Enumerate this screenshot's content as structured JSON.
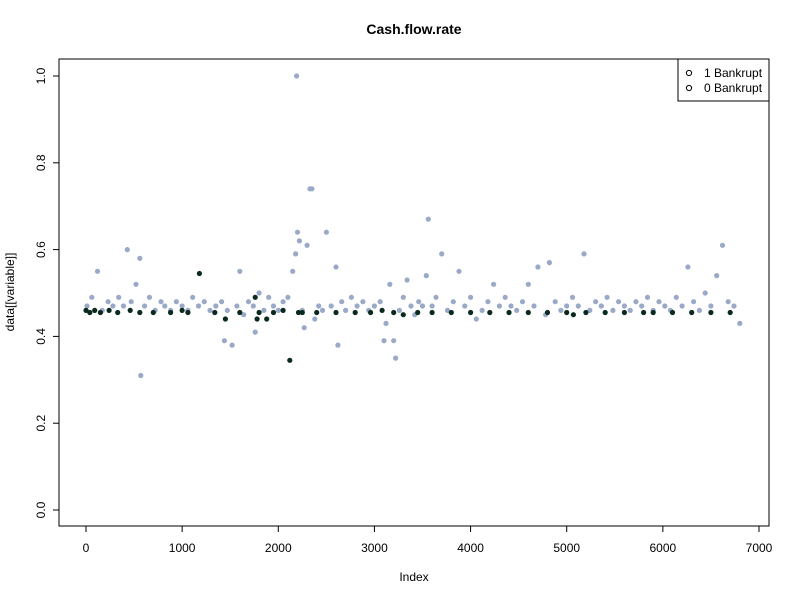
{
  "chart_data": {
    "type": "scatter",
    "title": "Cash.flow.rate",
    "xlabel": "Index",
    "ylabel": "data[[variable]]",
    "xlim": [
      0,
      7000
    ],
    "ylim": [
      0,
      1.0
    ],
    "x_ticks": [
      "0",
      "1000",
      "2000",
      "3000",
      "4000",
      "5000",
      "6000",
      "7000"
    ],
    "y_ticks": [
      "0.0",
      "0.2",
      "0.4",
      "0.6",
      "0.8",
      "1.0"
    ],
    "grid": false,
    "legend": {
      "position": "top-right",
      "items": [
        {
          "label": "1 Bankrupt",
          "symbol": "o"
        },
        {
          "label": "0 Bankrupt",
          "symbol": "o"
        }
      ]
    },
    "colors": {
      "bankrupt_0": "#9aa9c7",
      "bankrupt_1": "#0b2a1f"
    },
    "series": [
      {
        "name": "0 Bankrupt",
        "color": "#9aa9c7",
        "x": [
          10,
          60,
          120,
          170,
          230,
          280,
          340,
          390,
          430,
          470,
          520,
          560,
          570,
          610,
          660,
          720,
          780,
          820,
          880,
          940,
          1000,
          1060,
          1110,
          1170,
          1230,
          1290,
          1350,
          1410,
          1440,
          1470,
          1520,
          1570,
          1600,
          1640,
          1690,
          1740,
          1760,
          1800,
          1850,
          1900,
          1950,
          2000,
          2050,
          2100,
          2150,
          2180,
          2190,
          2200,
          2220,
          2250,
          2270,
          2300,
          2330,
          2350,
          2380,
          2420,
          2460,
          2500,
          2550,
          2600,
          2620,
          2660,
          2700,
          2760,
          2820,
          2880,
          2940,
          3000,
          3060,
          3100,
          3120,
          3160,
          3200,
          3220,
          3260,
          3300,
          3340,
          3380,
          3420,
          3460,
          3500,
          3540,
          3560,
          3600,
          3640,
          3700,
          3760,
          3820,
          3880,
          3940,
          4000,
          4060,
          4120,
          4180,
          4240,
          4300,
          4360,
          4420,
          4480,
          4540,
          4600,
          4660,
          4700,
          4780,
          4820,
          4880,
          4940,
          5000,
          5060,
          5120,
          5180,
          5240,
          5300,
          5360,
          5420,
          5480,
          5540,
          5600,
          5660,
          5720,
          5780,
          5840,
          5900,
          5960,
          6020,
          6080,
          6140,
          6200,
          6260,
          6320,
          6380,
          6440,
          6500,
          6560,
          6620,
          6680,
          6740,
          6800
        ],
        "y": [
          0.47,
          0.49,
          0.55,
          0.46,
          0.48,
          0.47,
          0.49,
          0.47,
          0.6,
          0.48,
          0.52,
          0.58,
          0.31,
          0.47,
          0.49,
          0.46,
          0.48,
          0.47,
          0.46,
          0.48,
          0.47,
          0.46,
          0.49,
          0.47,
          0.48,
          0.46,
          0.47,
          0.48,
          0.39,
          0.46,
          0.38,
          0.47,
          0.55,
          0.45,
          0.48,
          0.47,
          0.41,
          0.5,
          0.46,
          0.49,
          0.47,
          0.46,
          0.48,
          0.49,
          0.55,
          0.59,
          1.0,
          0.64,
          0.62,
          0.46,
          0.42,
          0.61,
          0.74,
          0.74,
          0.44,
          0.47,
          0.46,
          0.64,
          0.47,
          0.56,
          0.38,
          0.48,
          0.46,
          0.49,
          0.47,
          0.48,
          0.46,
          0.47,
          0.48,
          0.39,
          0.43,
          0.52,
          0.39,
          0.35,
          0.46,
          0.49,
          0.53,
          0.47,
          0.45,
          0.48,
          0.47,
          0.54,
          0.67,
          0.47,
          0.49,
          0.59,
          0.46,
          0.48,
          0.55,
          0.47,
          0.49,
          0.44,
          0.46,
          0.48,
          0.52,
          0.47,
          0.49,
          0.47,
          0.46,
          0.48,
          0.52,
          0.47,
          0.56,
          0.45,
          0.57,
          0.48,
          0.46,
          0.47,
          0.49,
          0.47,
          0.59,
          0.46,
          0.48,
          0.47,
          0.49,
          0.46,
          0.48,
          0.47,
          0.46,
          0.48,
          0.47,
          0.49,
          0.46,
          0.48,
          0.47,
          0.46,
          0.49,
          0.47,
          0.56,
          0.48,
          0.46,
          0.5,
          0.47,
          0.54,
          0.61,
          0.48,
          0.47,
          0.43
        ]
      },
      {
        "name": "1 Bankrupt",
        "color": "#0b2a1f",
        "x": [
          0,
          40,
          90,
          150,
          240,
          330,
          460,
          560,
          700,
          880,
          1000,
          1060,
          1180,
          1340,
          1450,
          1600,
          1760,
          1780,
          1800,
          1880,
          1950,
          2050,
          2120,
          2210,
          2250,
          2400,
          2600,
          2800,
          2960,
          3080,
          3200,
          3300,
          3450,
          3600,
          3800,
          4000,
          4200,
          4400,
          4600,
          4800,
          5000,
          5070,
          5200,
          5400,
          5600,
          5800,
          5900,
          6100,
          6300,
          6500,
          6700
        ],
        "y": [
          0.46,
          0.455,
          0.46,
          0.455,
          0.46,
          0.455,
          0.46,
          0.455,
          0.455,
          0.455,
          0.46,
          0.455,
          0.545,
          0.455,
          0.44,
          0.455,
          0.49,
          0.44,
          0.455,
          0.44,
          0.455,
          0.46,
          0.345,
          0.455,
          0.455,
          0.455,
          0.455,
          0.455,
          0.455,
          0.46,
          0.455,
          0.45,
          0.455,
          0.455,
          0.455,
          0.455,
          0.455,
          0.455,
          0.455,
          0.455,
          0.455,
          0.45,
          0.455,
          0.455,
          0.455,
          0.455,
          0.455,
          0.455,
          0.455,
          0.455,
          0.455
        ]
      }
    ]
  }
}
